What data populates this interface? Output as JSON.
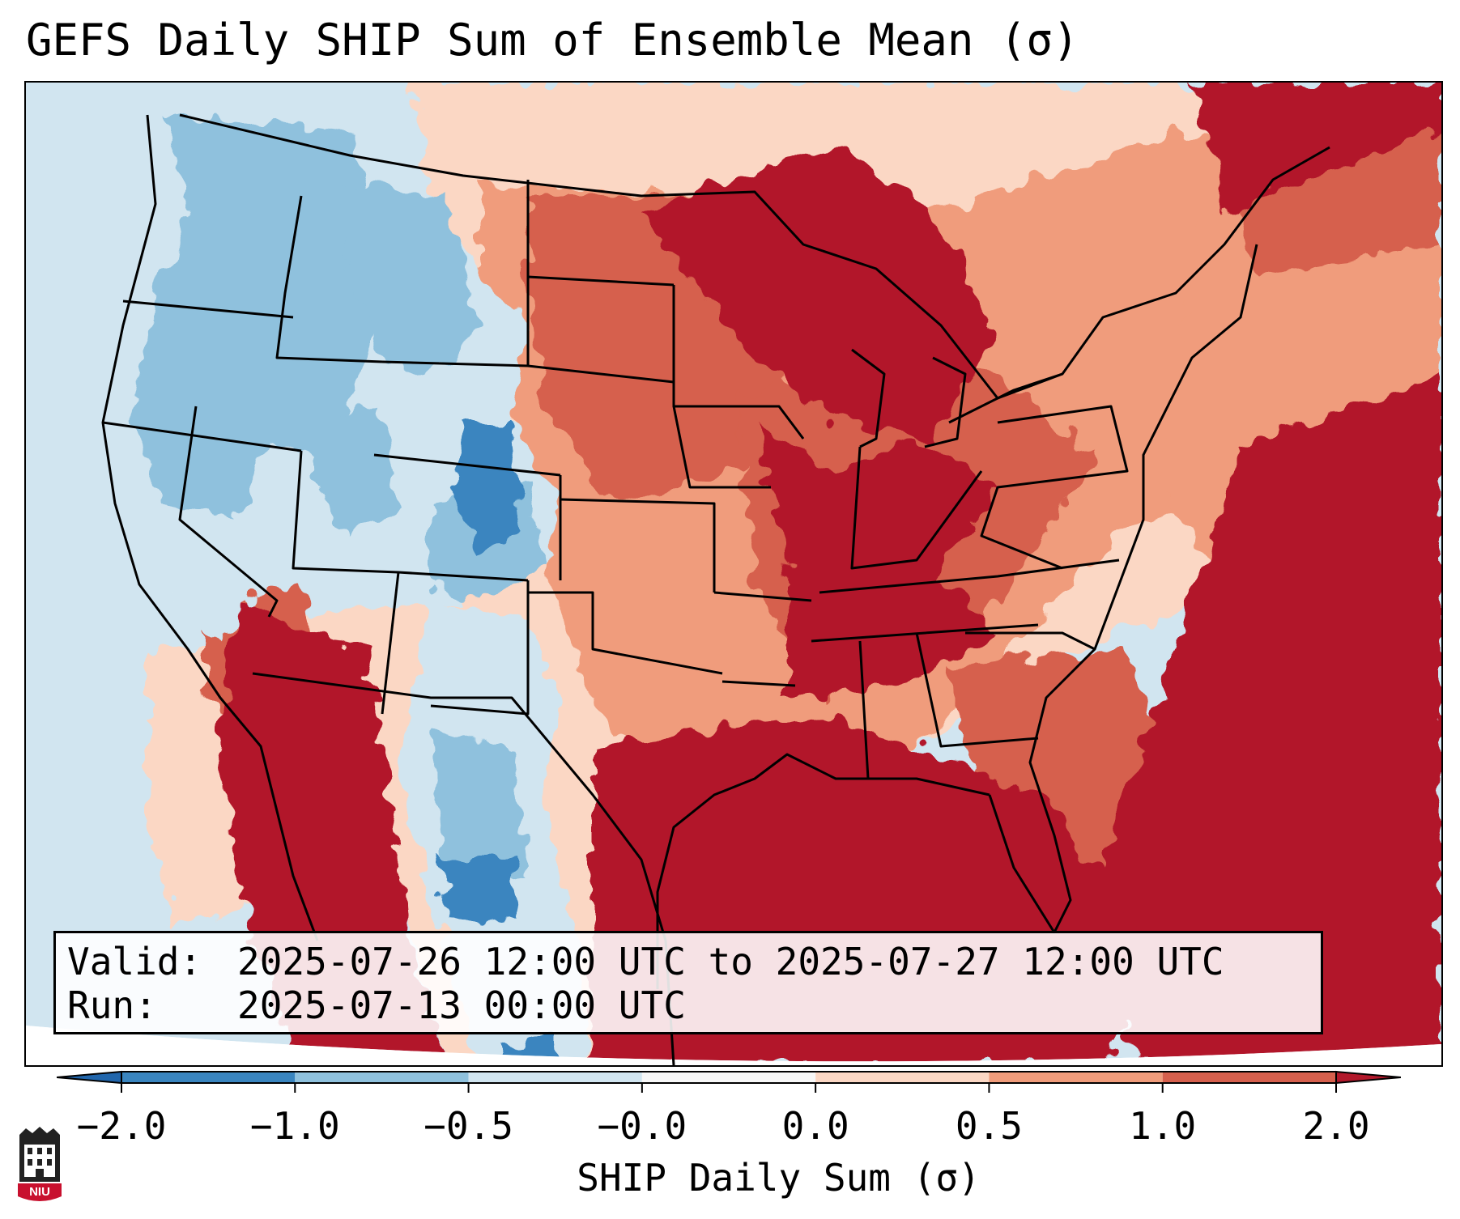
{
  "title": "GEFS Daily SHIP Sum of Ensemble Mean (σ)",
  "info": {
    "valid_key": "Valid:",
    "valid_value": "2025-07-26 12:00 UTC to 2025-07-27 12:00 UTC",
    "run_key": "Run:",
    "run_value": "2025-07-13 00:00 UTC"
  },
  "colorbar": {
    "label": "SHIP Daily Sum (σ)",
    "ticks": [
      "−2.0",
      "−1.0",
      "−0.5",
      "−0.0",
      "0.0",
      "0.5",
      "1.0",
      "2.0"
    ],
    "bins": [
      {
        "color": "#3a85bf"
      },
      {
        "color": "#8fc1dd"
      },
      {
        "color": "#d1e5f0"
      },
      {
        "color": "#f7f7f7"
      },
      {
        "color": "#fbd7c4"
      },
      {
        "color": "#f09c7b"
      },
      {
        "color": "#d6604d"
      }
    ],
    "under_color": "#2166ac",
    "over_color": "#b2182b"
  },
  "map": {
    "region": "CONUS",
    "background_color": "#d1e5f0",
    "outside_color": "#ffffff",
    "palette": {
      "very_negative": "#3a85bf",
      "negative": "#8fc1dd",
      "slightly_negative": "#d1e5f0",
      "slightly_positive": "#fbd7c4",
      "positive": "#f09c7b",
      "strong_positive": "#d6604d",
      "extreme_positive": "#b2182b",
      "border": "#000000"
    }
  },
  "logo": {
    "text": "NIU",
    "name": "niu-logo"
  }
}
